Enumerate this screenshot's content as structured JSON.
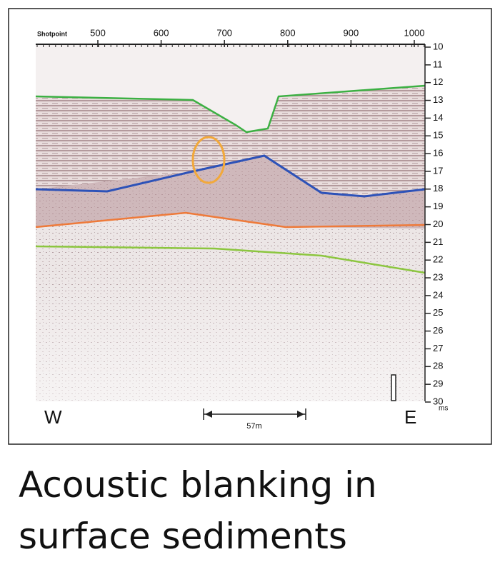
{
  "figure": {
    "top_axis": {
      "title": "Shotpoint",
      "labels": [
        "500",
        "600",
        "700",
        "800",
        "900",
        "1000"
      ]
    },
    "right_axis": {
      "labels": [
        "10",
        "11",
        "12",
        "13",
        "14",
        "15",
        "16",
        "17",
        "18",
        "19",
        "20",
        "21",
        "22",
        "23",
        "24",
        "25",
        "26",
        "27",
        "28",
        "29",
        "30"
      ],
      "unit": "ms"
    },
    "west": "W",
    "east": "E",
    "scale": "57m"
  },
  "caption": {
    "lines": [
      "Acoustic blanking in",
      "surface sediments"
    ]
  }
}
